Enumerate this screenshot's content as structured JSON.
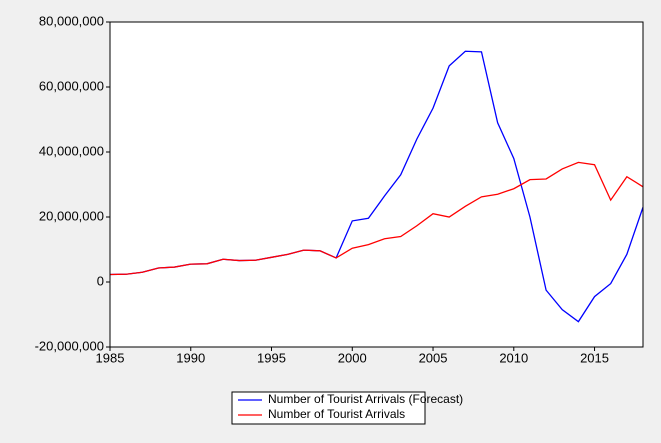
{
  "chart_data": {
    "type": "line",
    "x": [
      1985,
      1986,
      1987,
      1988,
      1989,
      1990,
      1991,
      1992,
      1993,
      1994,
      1995,
      1996,
      1997,
      1998,
      1999,
      2000,
      2001,
      2002,
      2003,
      2004,
      2005,
      2006,
      2007,
      2008,
      2009,
      2010,
      2011,
      2012,
      2013,
      2014,
      2015,
      2016,
      2017,
      2018
    ],
    "series": [
      {
        "name": "Number of Tourist Arrivals (Forecast)",
        "color": "#0000ff",
        "values": [
          2300000,
          2400000,
          3000000,
          4300000,
          4600000,
          5500000,
          5600000,
          7000000,
          6600000,
          6700000,
          7600000,
          8500000,
          9800000,
          9600000,
          7400000,
          18800000,
          19600000,
          26500000,
          33000000,
          44000000,
          53500000,
          66500000,
          71000000,
          70800000,
          49000000,
          38000000,
          20000000,
          -2500000,
          -8500000,
          -12200000,
          -4500000,
          -500000,
          8500000,
          23000000
        ]
      },
      {
        "name": "Number of Tourist Arrivals",
        "color": "#ff0000",
        "values": [
          2300000,
          2400000,
          3000000,
          4300000,
          4600000,
          5500000,
          5600000,
          7000000,
          6600000,
          6700000,
          7600000,
          8500000,
          9800000,
          9600000,
          7400000,
          10400000,
          11500000,
          13300000,
          14000000,
          17300000,
          21000000,
          20000000,
          23300000,
          26200000,
          27000000,
          28700000,
          31500000,
          31700000,
          34800000,
          36800000,
          36100000,
          25200000,
          32400000,
          29300000
        ]
      }
    ],
    "xlim": [
      1985,
      2018
    ],
    "xticks": [
      1985,
      1990,
      1995,
      2000,
      2005,
      2010,
      2015
    ],
    "ylim": [
      -20000000,
      80000000
    ],
    "yticks": [
      {
        "value": -20000000,
        "label": "-20,000,000"
      },
      0,
      {
        "value": 20000000,
        "label": "20,000,000"
      },
      {
        "value": 40000000,
        "label": "40,000,000"
      },
      {
        "value": 60000000,
        "label": "60,000,000"
      },
      {
        "value": 80000000,
        "label": "80,000,000"
      }
    ],
    "grid": false,
    "legend": "bottom"
  }
}
